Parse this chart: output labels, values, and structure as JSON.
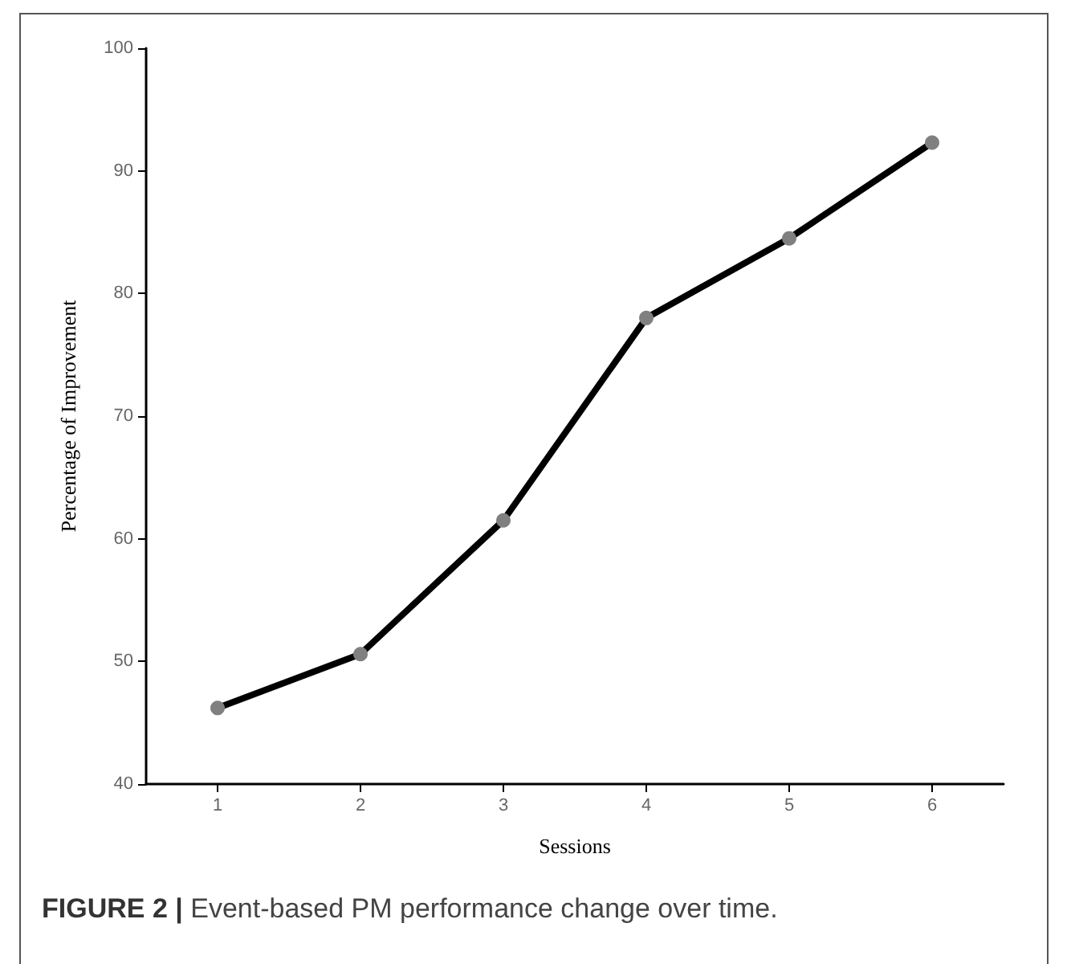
{
  "chart_data": {
    "type": "line",
    "xlabel": "Sessions",
    "ylabel": "Percentage of Improvement",
    "categories": [
      "1",
      "2",
      "3",
      "4",
      "5",
      "6"
    ],
    "series": [
      {
        "color": "#000000",
        "values": [
          46.2,
          50.6,
          61.5,
          78.0,
          84.5,
          92.3
        ]
      }
    ],
    "ylim": [
      40,
      100
    ],
    "yticks": [
      40,
      50,
      60,
      70,
      80,
      90,
      100
    ],
    "grid": false,
    "marker": "circle",
    "line_style": "solid",
    "annotations": [
      "FIGURE 2 | Event-based PM performance change over time."
    ]
  }
}
